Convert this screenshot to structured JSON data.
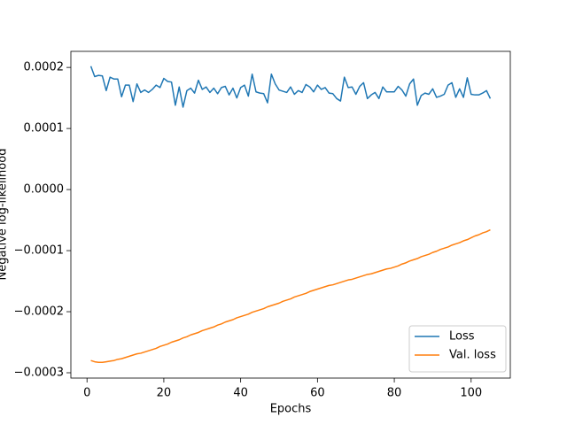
{
  "chart_data": {
    "type": "line",
    "xlabel": "Epochs",
    "ylabel": "Negative log-likelihood",
    "x": [
      1,
      2,
      3,
      4,
      5,
      6,
      7,
      8,
      9,
      10,
      11,
      12,
      13,
      14,
      15,
      16,
      17,
      18,
      19,
      20,
      21,
      22,
      23,
      24,
      25,
      26,
      27,
      28,
      29,
      30,
      31,
      32,
      33,
      34,
      35,
      36,
      37,
      38,
      39,
      40,
      41,
      42,
      43,
      44,
      45,
      46,
      47,
      48,
      49,
      50,
      51,
      52,
      53,
      54,
      55,
      56,
      57,
      58,
      59,
      60,
      61,
      62,
      63,
      64,
      65,
      66,
      67,
      68,
      69,
      70,
      71,
      72,
      73,
      74,
      75,
      76,
      77,
      78,
      79,
      80,
      81,
      82,
      83,
      84,
      85,
      86,
      87,
      88,
      89,
      90,
      91,
      92,
      93,
      94,
      95,
      96,
      97,
      98,
      99,
      100,
      101,
      102,
      103,
      104,
      105
    ],
    "series": [
      {
        "name": "Loss",
        "color": "#1f77b4",
        "values": [
          0.000202,
          0.000185,
          0.000187,
          0.000186,
          0.000162,
          0.000184,
          0.000181,
          0.000181,
          0.000152,
          0.000171,
          0.000171,
          0.000144,
          0.000173,
          0.000159,
          0.000163,
          0.000159,
          0.000164,
          0.000171,
          0.000167,
          0.000182,
          0.000177,
          0.000176,
          0.000138,
          0.000168,
          0.000135,
          0.000162,
          0.000166,
          0.000158,
          0.000179,
          0.000164,
          0.000168,
          0.000159,
          0.000166,
          0.000157,
          0.000167,
          0.000169,
          0.000155,
          0.000166,
          0.00015,
          0.000167,
          0.000171,
          0.000153,
          0.000189,
          0.00016,
          0.000158,
          0.000157,
          0.000142,
          0.000189,
          0.000173,
          0.000163,
          0.000161,
          0.000159,
          0.000168,
          0.000156,
          0.000162,
          0.000159,
          0.000172,
          0.000168,
          0.00016,
          0.000171,
          0.000164,
          0.000167,
          0.000158,
          0.000157,
          0.000149,
          0.000145,
          0.000184,
          0.000167,
          0.000168,
          0.000156,
          0.000169,
          0.000175,
          0.000149,
          0.000155,
          0.000159,
          0.000149,
          0.000168,
          0.00016,
          0.00016,
          0.00016,
          0.000169,
          0.000163,
          0.000153,
          0.000173,
          0.000181,
          0.000138,
          0.000154,
          0.000158,
          0.000156,
          0.000165,
          0.000151,
          0.000153,
          0.000156,
          0.000171,
          0.000175,
          0.000151,
          0.000165,
          0.000151,
          0.000183,
          0.000156,
          0.000155,
          0.000155,
          0.000158,
          0.000162,
          0.000149
        ]
      },
      {
        "name": "Val. loss",
        "color": "#ff7f0e",
        "values": [
          -0.00028,
          -0.000282,
          -0.000283,
          -0.000283,
          -0.000282,
          -0.000281,
          -0.00028,
          -0.000278,
          -0.000277,
          -0.000275,
          -0.000273,
          -0.000271,
          -0.000269,
          -0.000268,
          -0.000266,
          -0.000264,
          -0.000262,
          -0.00026,
          -0.000257,
          -0.000255,
          -0.000253,
          -0.00025,
          -0.000248,
          -0.000246,
          -0.000243,
          -0.000241,
          -0.000238,
          -0.000236,
          -0.000234,
          -0.000231,
          -0.000229,
          -0.000227,
          -0.000225,
          -0.000222,
          -0.00022,
          -0.000217,
          -0.000215,
          -0.000213,
          -0.00021,
          -0.000208,
          -0.000206,
          -0.000204,
          -0.000201,
          -0.000199,
          -0.000197,
          -0.000195,
          -0.000192,
          -0.00019,
          -0.000188,
          -0.000186,
          -0.000183,
          -0.000181,
          -0.000179,
          -0.000176,
          -0.000174,
          -0.000172,
          -0.00017,
          -0.000167,
          -0.000165,
          -0.000163,
          -0.000161,
          -0.000159,
          -0.000157,
          -0.000156,
          -0.000154,
          -0.000152,
          -0.00015,
          -0.000148,
          -0.000147,
          -0.000145,
          -0.000143,
          -0.000141,
          -0.000139,
          -0.000138,
          -0.000136,
          -0.000134,
          -0.000132,
          -0.00013,
          -0.000129,
          -0.000127,
          -0.000125,
          -0.000122,
          -0.00012,
          -0.000117,
          -0.000115,
          -0.000113,
          -0.00011,
          -0.000108,
          -0.000106,
          -0.000103,
          -0.000101,
          -9.8e-05,
          -9.6e-05,
          -9.4e-05,
          -9.1e-05,
          -8.9e-05,
          -8.7e-05,
          -8.4e-05,
          -8.2e-05,
          -7.9e-05,
          -7.6e-05,
          -7.4e-05,
          -7.1e-05,
          -6.9e-05,
          -6.6e-05
        ]
      }
    ],
    "xlim": [
      -4.2,
      110.2
    ],
    "xticks": [
      0,
      20,
      40,
      60,
      80,
      100
    ],
    "ylim": [
      -0.0003087,
      0.0002263
    ],
    "yticks": [
      {
        "value": -0.0003,
        "label": "−0.0003"
      },
      {
        "value": -0.0002,
        "label": "−0.0002"
      },
      {
        "value": -0.0001,
        "label": "−0.0001"
      },
      {
        "value": 0,
        "label": "0.0000"
      },
      0.0001,
      0.0002
    ],
    "legend": "lower right",
    "grid": false
  }
}
